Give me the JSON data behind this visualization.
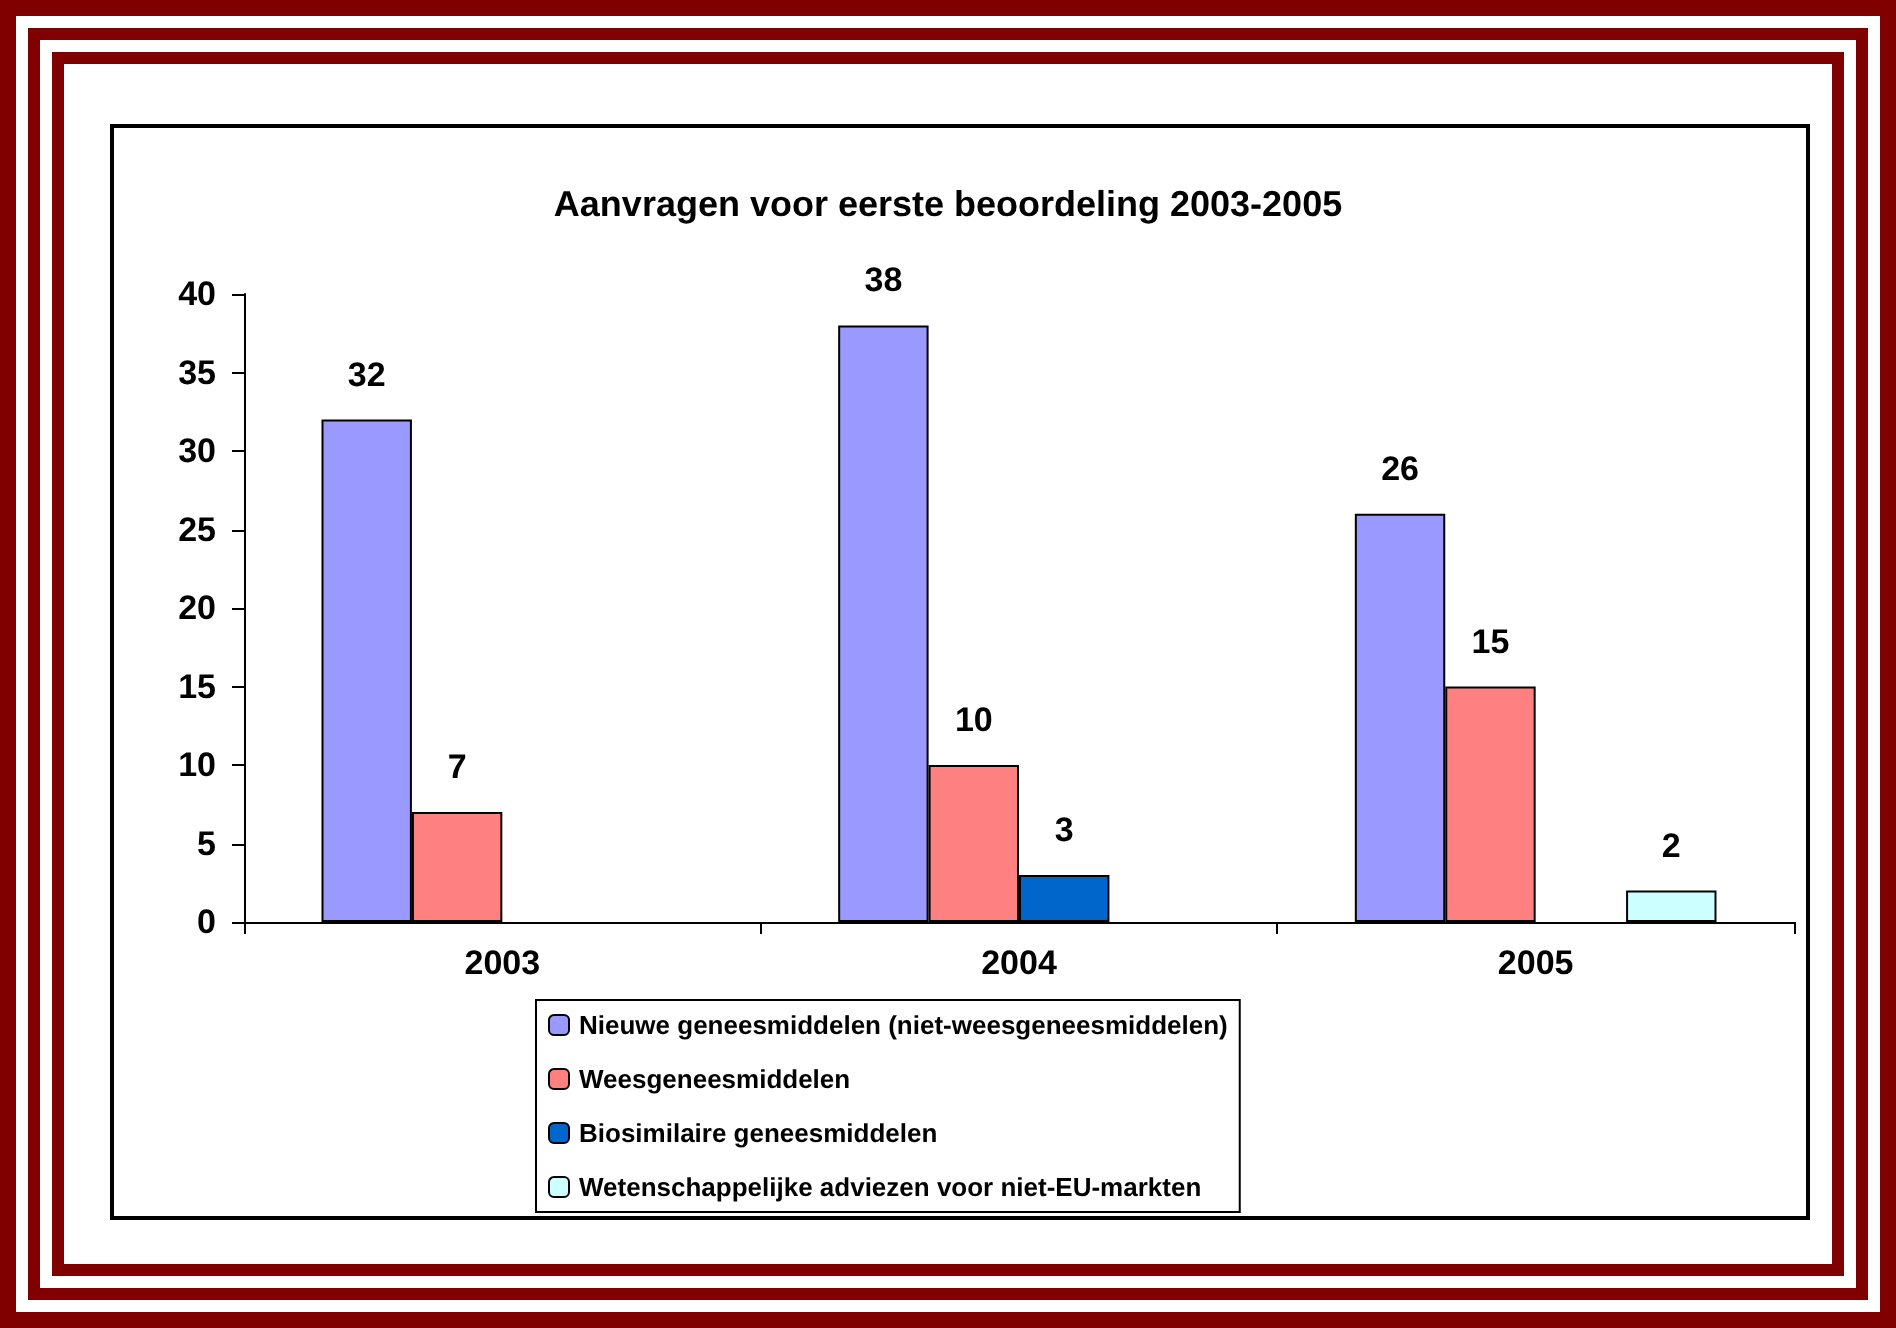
{
  "chart_data": {
    "type": "bar",
    "title": "Aanvragen voor eerste beoordeling 2003-2005",
    "categories": [
      "2003",
      "2004",
      "2005"
    ],
    "series": [
      {
        "name": "Nieuwe geneesmiddelen (niet-weesgeneesmiddelen)",
        "color": "#9999ff",
        "values": [
          32,
          38,
          26
        ]
      },
      {
        "name": "Weesgeneesmiddelen",
        "color": "#ff8080",
        "values": [
          7,
          10,
          15
        ]
      },
      {
        "name": "Biosimilaire geneesmiddelen",
        "color": "#0066cc",
        "values": [
          null,
          3,
          null
        ]
      },
      {
        "name": "Wetenschappelijke adviezen voor niet-EU-markten",
        "color": "#ccffff",
        "values": [
          null,
          null,
          2
        ]
      }
    ],
    "ylim": [
      0,
      40
    ],
    "yticks": [
      0,
      5,
      10,
      15,
      20,
      25,
      30,
      35,
      40
    ],
    "data_labels": true,
    "legend": "bottom",
    "grid": false
  }
}
